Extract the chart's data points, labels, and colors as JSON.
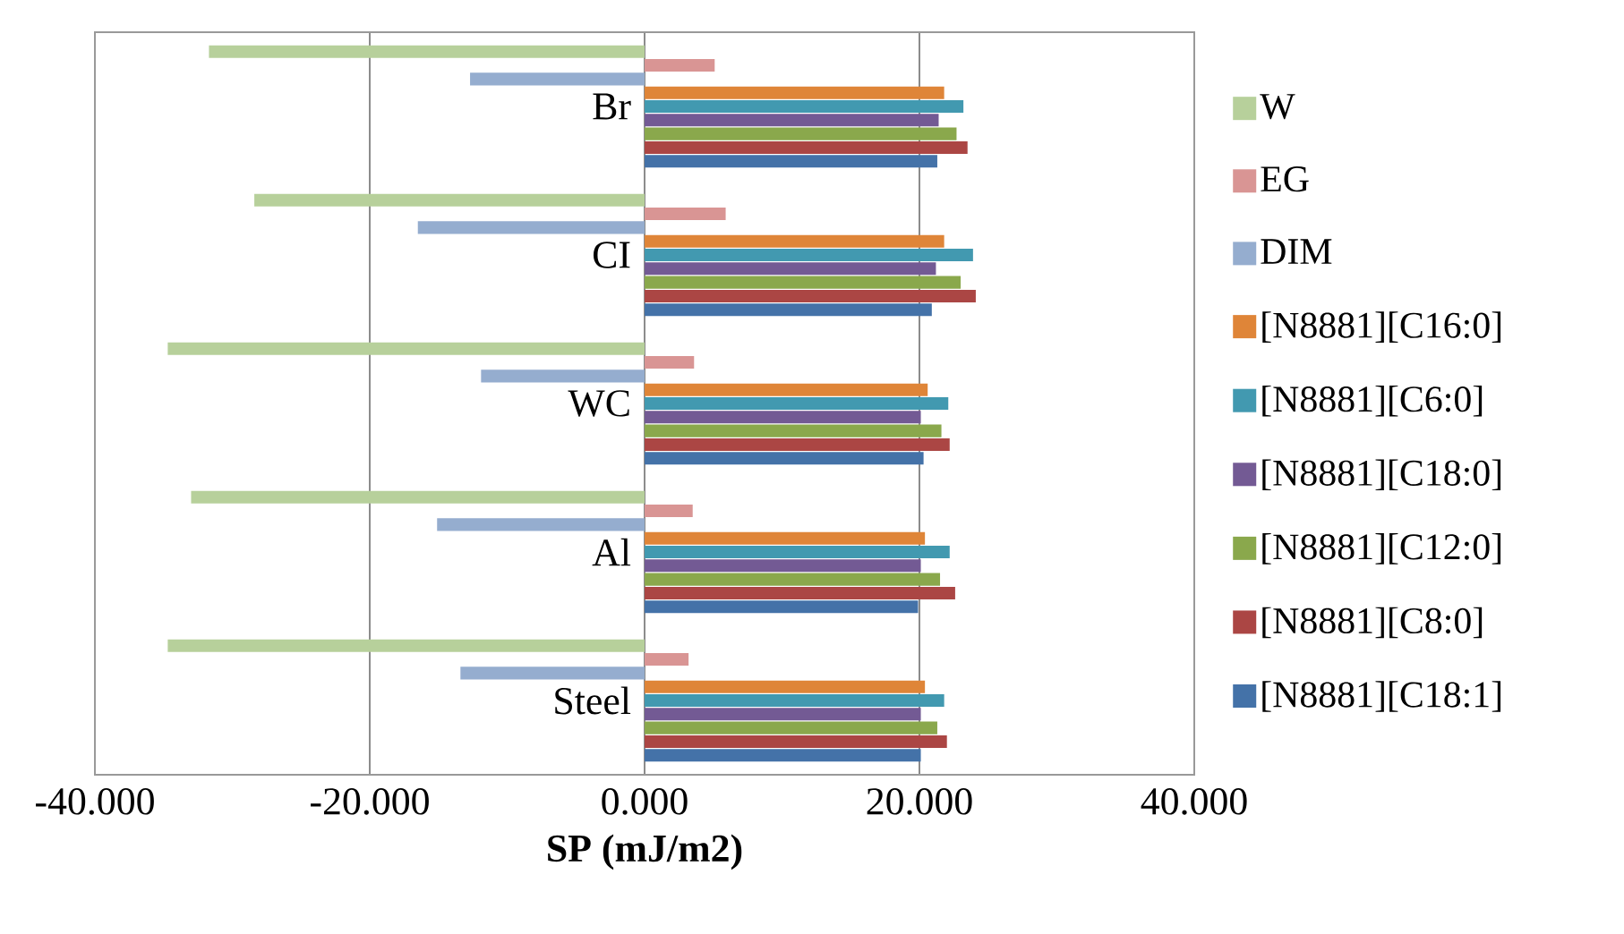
{
  "chart_data": {
    "type": "bar",
    "orientation": "horizontal",
    "xlabel": "**SP (mJ/m2)**",
    "categories": [
      "Br",
      "CI",
      "WC",
      "Al",
      "Steel"
    ],
    "series": [
      {
        "name": "W",
        "color": "#b7d09b",
        "values": [
          -31.7,
          -28.4,
          -34.7,
          -33.0,
          -34.7
        ]
      },
      {
        "name": "EG",
        "color": "#d99594",
        "values": [
          5.1,
          5.9,
          3.6,
          3.5,
          3.2
        ]
      },
      {
        "name": "DIM",
        "color": "#95adcf",
        "values": [
          -12.7,
          -16.5,
          -11.9,
          -15.1,
          -13.4
        ]
      },
      {
        "name": "[N8881][C16:0]",
        "color": "#df8538",
        "values": [
          21.8,
          21.8,
          20.6,
          20.4,
          20.4
        ]
      },
      {
        "name": "[N8881][C6:0]",
        "color": "#4299b0",
        "values": [
          23.2,
          23.9,
          22.1,
          22.2,
          21.8
        ]
      },
      {
        "name": "[N8881][C18:0]",
        "color": "#735a94",
        "values": [
          21.4,
          21.2,
          20.1,
          20.1,
          20.1
        ]
      },
      {
        "name": "[N8881][C12:0]",
        "color": "#8aa84c",
        "values": [
          22.7,
          23.0,
          21.6,
          21.5,
          21.3
        ]
      },
      {
        "name": "[N8881][C8:0]",
        "color": "#ab4644",
        "values": [
          23.5,
          24.1,
          22.2,
          22.6,
          22.0
        ]
      },
      {
        "name": "[N8881][C18:1]",
        "color": "#4472a8",
        "values": [
          21.3,
          20.9,
          20.3,
          19.9,
          20.1
        ]
      }
    ],
    "xlim": [
      -40,
      40
    ],
    "xticks": [
      {
        "value": -40,
        "label": "-40.000"
      },
      {
        "value": -20,
        "label": "-20.000"
      },
      {
        "value": 0,
        "label": "0.000"
      },
      {
        "value": 20,
        "label": "20.000"
      },
      {
        "value": 40,
        "label": "40.000"
      }
    ],
    "grid": "x",
    "legend": "right"
  }
}
